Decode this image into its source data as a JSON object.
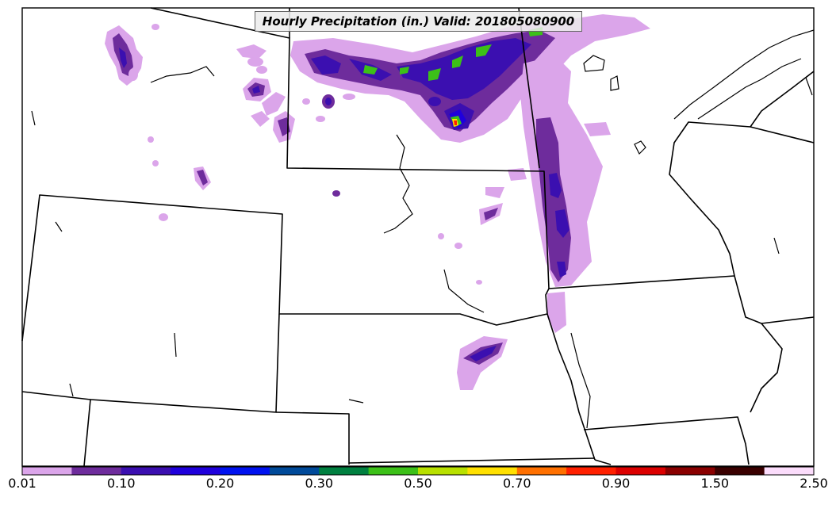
{
  "title": "Hourly Precipitation (in.) Valid: 201805080900",
  "colorbar": {
    "labels": [
      "0.01",
      "0.10",
      "0.20",
      "0.30",
      "0.50",
      "0.70",
      "0.90",
      "1.50",
      "2.50"
    ],
    "colors": [
      "#dba5ea",
      "#6e2c9c",
      "#3b0fb0",
      "#1f00dc",
      "#0012f0",
      "#004a9a",
      "#008040",
      "#3cc018",
      "#b8e000",
      "#ffe000",
      "#ff7000",
      "#ff2000",
      "#dc0000",
      "#8a0000",
      "#3a0000",
      "#fbdcfb"
    ]
  },
  "precip_colors": {
    "light": "#dba5ea",
    "medium": "#6e2c9c",
    "heavy": "#3b0fb0",
    "blue": "#1f00dc",
    "green": "#008040",
    "yellow": "#ffe000",
    "red": "#ff2000"
  }
}
